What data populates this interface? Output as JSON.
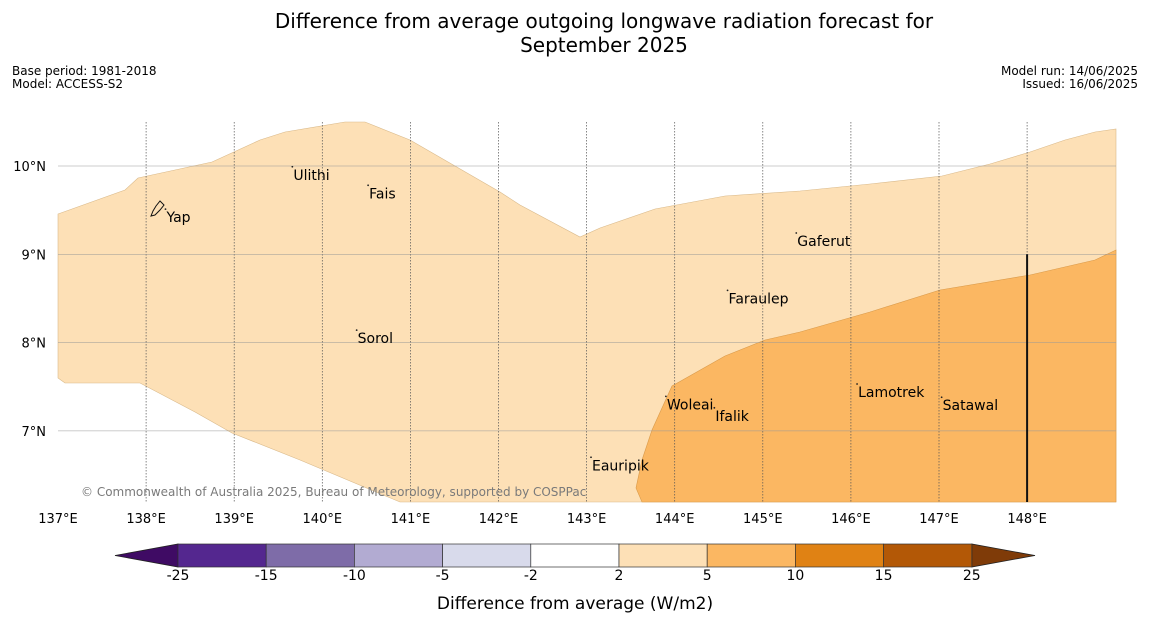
{
  "title": {
    "line1": "Difference from average outgoing longwave radiation forecast for",
    "line2": "September 2025"
  },
  "meta_left": {
    "base_period": "Base period: 1981-2018",
    "model": "Model: ACCESS-S2"
  },
  "meta_right": {
    "model_run": "Model run: 14/06/2025",
    "issued": "Issued: 16/06/2025"
  },
  "map": {
    "lon_range": [
      137,
      149
    ],
    "lat_range": [
      6.2,
      10.5
    ],
    "lon_ticks": [
      "137°E",
      "138°E",
      "139°E",
      "140°E",
      "141°E",
      "142°E",
      "143°E",
      "144°E",
      "145°E",
      "146°E",
      "147°E",
      "148°E"
    ],
    "lat_ticks": [
      "10°N",
      "9°N",
      "8°N",
      "7°N"
    ],
    "copyright": "© Commonwealth of Australia 2025, Bureau of Meteorology, supported by COSPPac",
    "places": [
      {
        "name": "Yap",
        "lon": 138.22,
        "lat": 9.5
      },
      {
        "name": "Ulithi",
        "lon": 139.66,
        "lat": 9.98
      },
      {
        "name": "Fais",
        "lon": 140.52,
        "lat": 9.77
      },
      {
        "name": "Gaferut",
        "lon": 145.38,
        "lat": 9.23
      },
      {
        "name": "Faraulep",
        "lon": 144.6,
        "lat": 8.58
      },
      {
        "name": "Sorol",
        "lon": 140.39,
        "lat": 8.13
      },
      {
        "name": "Lamotrek",
        "lon": 146.07,
        "lat": 7.52
      },
      {
        "name": "Woleai",
        "lon": 143.9,
        "lat": 7.38
      },
      {
        "name": "Ifalik",
        "lon": 144.45,
        "lat": 7.25
      },
      {
        "name": "Satawal",
        "lon": 147.03,
        "lat": 7.37
      },
      {
        "name": "Eauripik",
        "lon": 143.05,
        "lat": 6.69
      }
    ],
    "meridian_line_lon": 148,
    "meridian_line_lat_range": [
      6.2,
      9.0
    ]
  },
  "colorbar": {
    "title": "Difference from average (W/m2)",
    "boundaries": [
      "-25",
      "-15",
      "-10",
      "-5",
      "-2",
      "2",
      "5",
      "10",
      "15",
      "25"
    ],
    "colors": [
      "#3f0b64",
      "#54278f",
      "#7e6ca8",
      "#b2abd2",
      "#d8daeb",
      "#ffffff",
      "#fde0b6",
      "#fbb762",
      "#e08214",
      "#b35806",
      "#7f3b08"
    ]
  }
}
